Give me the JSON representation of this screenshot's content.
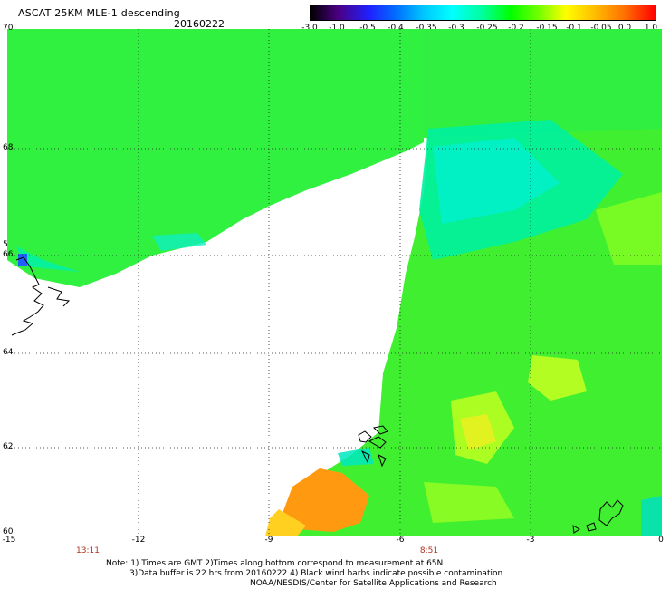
{
  "header": {
    "title": "ASCAT 25KM MLE-1 descending",
    "date": "20160222"
  },
  "colorbar": {
    "labels": [
      "-3.0",
      "-1.0",
      "-0.5",
      "-0.4",
      "-0.35",
      "-0.3",
      "-0.25",
      "-0.2",
      "-0.15",
      "-0.1",
      "-0.05",
      "0.0",
      "1.0"
    ]
  },
  "map": {
    "lat_labels": [
      "70",
      "68",
      "66",
      "64",
      "62",
      "60"
    ],
    "lon_labels": [
      "-15",
      "-12",
      "-9",
      "-6",
      "-3",
      "0"
    ],
    "extra_lat_label": "5",
    "pass_times": [
      "13:11",
      "8:51"
    ]
  },
  "footer": {
    "note_line1": "Note: 1) Times are GMT 2)Times along bottom correspond to measurement at 65N",
    "note_line2": "3)Data buffer is 22 hrs from 20160222 4) Black wind barbs indicate possible contamination",
    "credit": "NOAA/NESDIS/Center for Satellite Applications and Research"
  },
  "colors": {
    "bar_stops": [
      "#000000",
      "#5a00a0",
      "#0000ff",
      "#0090ff",
      "#00ffff",
      "#00ff90",
      "#00ff00",
      "#80ff00",
      "#ffff00",
      "#ffa000",
      "#ff4000",
      "#ff0000"
    ]
  }
}
